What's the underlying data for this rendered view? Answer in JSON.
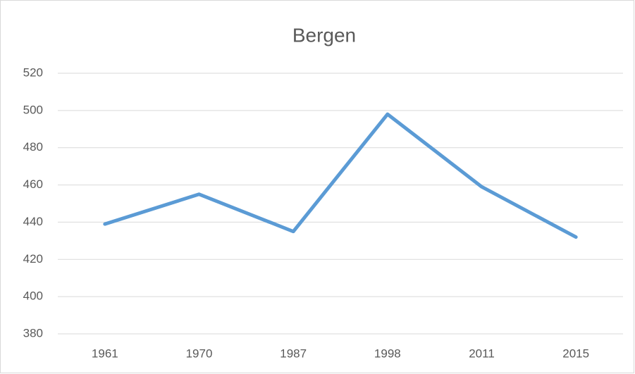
{
  "chart_data": {
    "type": "line",
    "title": "Bergen",
    "categories": [
      "1961",
      "1970",
      "1987",
      "1998",
      "2011",
      "2015"
    ],
    "series": [
      {
        "name": "Bergen",
        "color": "#5b9bd5",
        "values": [
          439,
          455,
          435,
          498,
          459,
          432
        ]
      }
    ],
    "ylim": [
      380,
      520
    ],
    "yticks": [
      380,
      400,
      420,
      440,
      460,
      480,
      500,
      520
    ],
    "grid": true
  }
}
